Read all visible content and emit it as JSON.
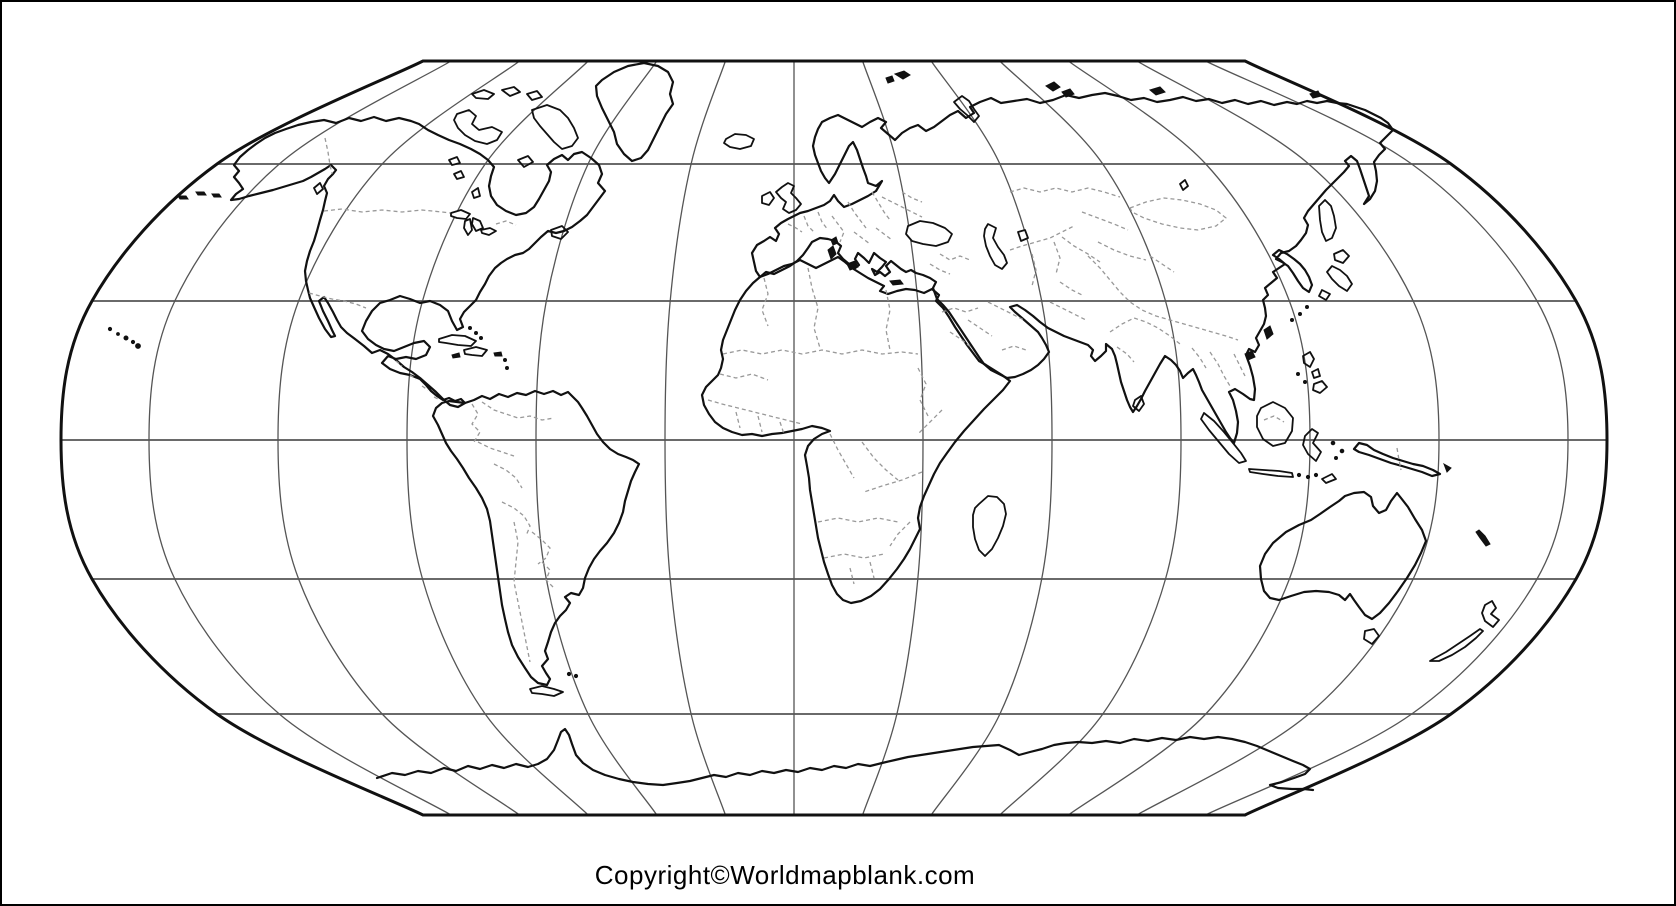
{
  "page": {
    "background_color": "#ffffff",
    "frame_color": "#000000"
  },
  "map": {
    "land_outline_color": "#111111",
    "graticule_color": "#555555",
    "country_border_dash_color": "#999999",
    "ocean_color": "#ffffff"
  },
  "footer": {
    "copyright": "Copyright©Worldmapblank.com"
  }
}
